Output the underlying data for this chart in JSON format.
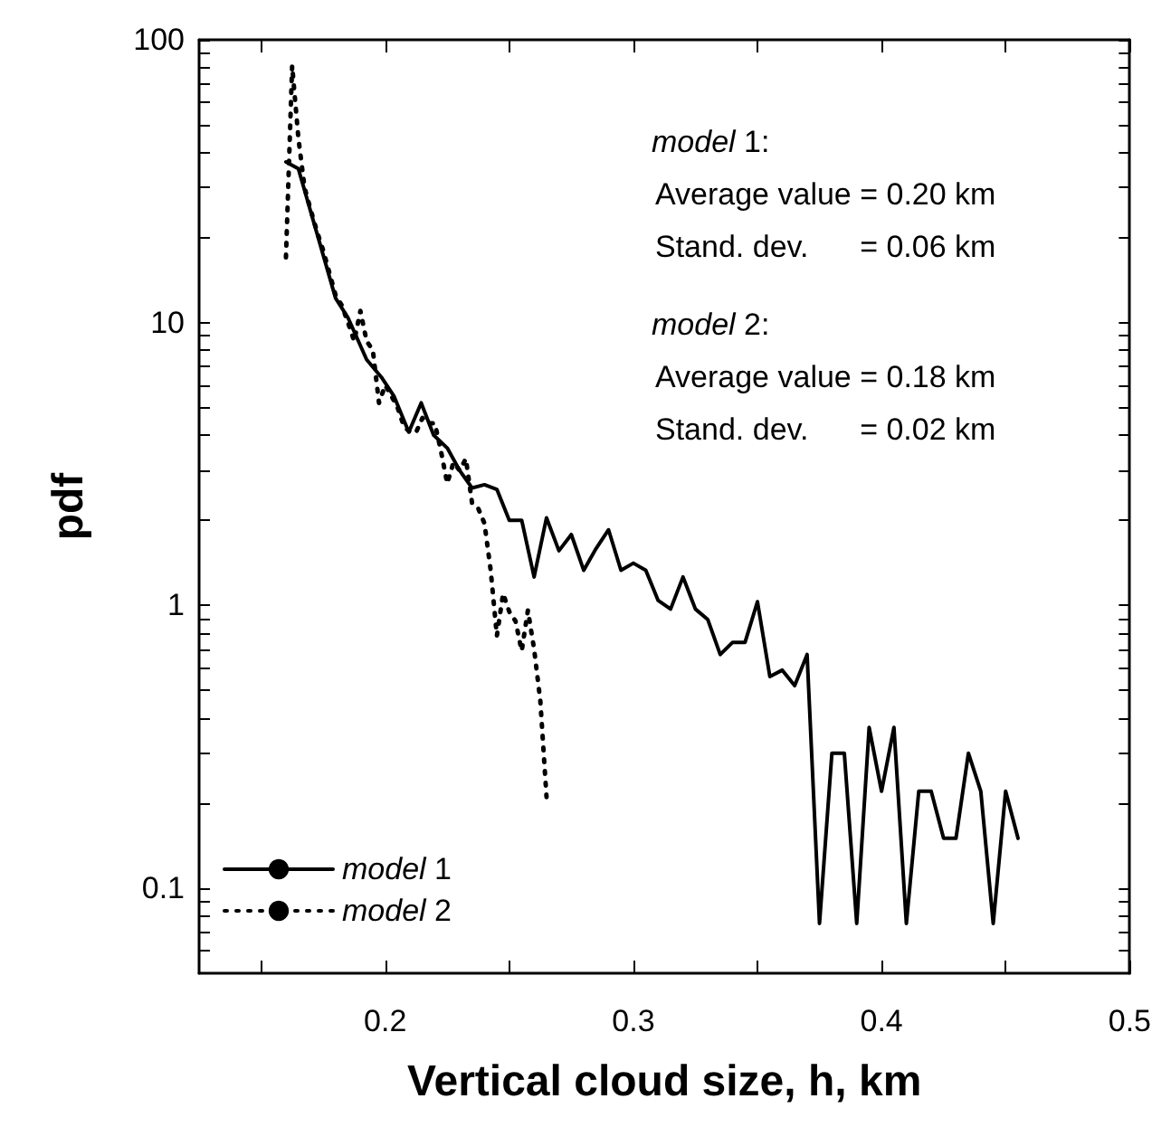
{
  "chart_data": {
    "type": "line",
    "xlabel": "Vertical cloud size, h, km",
    "ylabel": "pdf",
    "log": "y",
    "xlim": [
      0.125,
      0.5
    ],
    "ylim": [
      0.05,
      100
    ],
    "xticks": [
      {
        "value": 0.15,
        "label": null
      },
      0.2,
      {
        "value": 0.25,
        "label": null
      },
      0.3,
      {
        "value": 0.35,
        "label": null
      },
      0.4,
      {
        "value": 0.45,
        "label": null
      },
      0.5
    ],
    "yticks": [
      {
        "value": 0.06,
        "label": null
      },
      {
        "value": 0.07,
        "label": null
      },
      {
        "value": 0.08,
        "label": null
      },
      {
        "value": 0.09,
        "label": null
      },
      0.1,
      {
        "value": 0.2,
        "label": null
      },
      {
        "value": 0.3,
        "label": null
      },
      {
        "value": 0.4,
        "label": null
      },
      {
        "value": 0.5,
        "label": null
      },
      {
        "value": 0.6,
        "label": null
      },
      {
        "value": 0.7,
        "label": null
      },
      {
        "value": 0.8,
        "label": null
      },
      {
        "value": 0.9,
        "label": null
      },
      1,
      {
        "value": 2,
        "label": null
      },
      {
        "value": 3,
        "label": null
      },
      {
        "value": 4,
        "label": null
      },
      {
        "value": 5,
        "label": null
      },
      {
        "value": 6,
        "label": null
      },
      {
        "value": 7,
        "label": null
      },
      {
        "value": 8,
        "label": null
      },
      {
        "value": 9,
        "label": null
      },
      10,
      {
        "value": 20,
        "label": null
      },
      {
        "value": 30,
        "label": null
      },
      {
        "value": 40,
        "label": null
      },
      {
        "value": 50,
        "label": null
      },
      {
        "value": 60,
        "label": null
      },
      {
        "value": 70,
        "label": null
      },
      {
        "value": 80,
        "label": null
      },
      {
        "value": 90,
        "label": null
      },
      100
    ],
    "grid": false,
    "legend": "bottom left",
    "marker": "none",
    "annotations": [
      "model 1:",
      "Average value = 0.20 km",
      "Stand. dev.      = 0.06 km",
      "model 2:",
      "Average value = 0.18 km",
      "Stand. dev.      = 0.02 km"
    ],
    "series": [
      {
        "name": "model 1",
        "color": "#000000",
        "line_style": "solid",
        "x": [
          0.16,
          0.165,
          0.18,
          0.185,
          0.1925,
          0.1985,
          0.2035,
          0.2095,
          0.2145,
          0.2195,
          0.225,
          0.23,
          0.235,
          0.24,
          0.245,
          0.25,
          0.255,
          0.26,
          0.265,
          0.27,
          0.275,
          0.28,
          0.285,
          0.29,
          0.295,
          0.3,
          0.305,
          0.31,
          0.315,
          0.32,
          0.325,
          0.33,
          0.335,
          0.34,
          0.345,
          0.35,
          0.355,
          0.36,
          0.365,
          0.37,
          0.375,
          0.38,
          0.385,
          0.39,
          0.395,
          0.4,
          0.405,
          0.41,
          0.415,
          0.42,
          0.425,
          0.43,
          0.435,
          0.44,
          0.445,
          0.45,
          0.455
        ],
        "values": [
          37,
          35,
          12.2,
          10.4,
          7.4,
          6.4,
          5.5,
          4.1,
          5.2,
          4.0,
          3.6,
          3.0,
          2.6,
          2.67,
          2.57,
          2.0,
          2.0,
          1.26,
          2.04,
          1.56,
          1.78,
          1.33,
          1.59,
          1.85,
          1.33,
          1.41,
          1.33,
          1.04,
          0.97,
          1.26,
          0.97,
          0.89,
          0.67,
          0.74,
          0.74,
          1.03,
          0.56,
          0.59,
          0.52,
          0.67,
          0.075,
          0.3,
          0.3,
          0.075,
          0.37,
          0.22,
          0.37,
          0.075,
          0.22,
          0.22,
          0.15,
          0.15,
          0.3,
          0.22,
          0.075,
          0.22,
          0.15
        ]
      },
      {
        "name": "model 2",
        "color": "#000000",
        "line_style": "dotted",
        "x": [
          0.16,
          0.1625,
          0.165,
          0.1675,
          0.17,
          0.1725,
          0.175,
          0.1775,
          0.18,
          0.1825,
          0.185,
          0.1875,
          0.19,
          0.1925,
          0.195,
          0.1975,
          0.2,
          0.2025,
          0.205,
          0.2075,
          0.21,
          0.2125,
          0.215,
          0.2175,
          0.22,
          0.2225,
          0.225,
          0.2275,
          0.23,
          0.2325,
          0.235,
          0.2375,
          0.24,
          0.2425,
          0.245,
          0.2475,
          0.25,
          0.2525,
          0.255,
          0.2575,
          0.26,
          0.2625,
          0.265
        ],
        "values": [
          17,
          81,
          45,
          30,
          25,
          21,
          18,
          15,
          12.5,
          11.5,
          10,
          8.6,
          11,
          8.6,
          8.0,
          5.2,
          6.0,
          5.5,
          5.0,
          4.3,
          4.1,
          4.1,
          4.6,
          4.4,
          4.4,
          3.5,
          2.7,
          3.2,
          3.0,
          3.3,
          2.3,
          2.2,
          1.95,
          1.33,
          0.78,
          1.1,
          0.95,
          0.88,
          0.69,
          0.96,
          0.7,
          0.46,
          0.21
        ]
      }
    ]
  }
}
